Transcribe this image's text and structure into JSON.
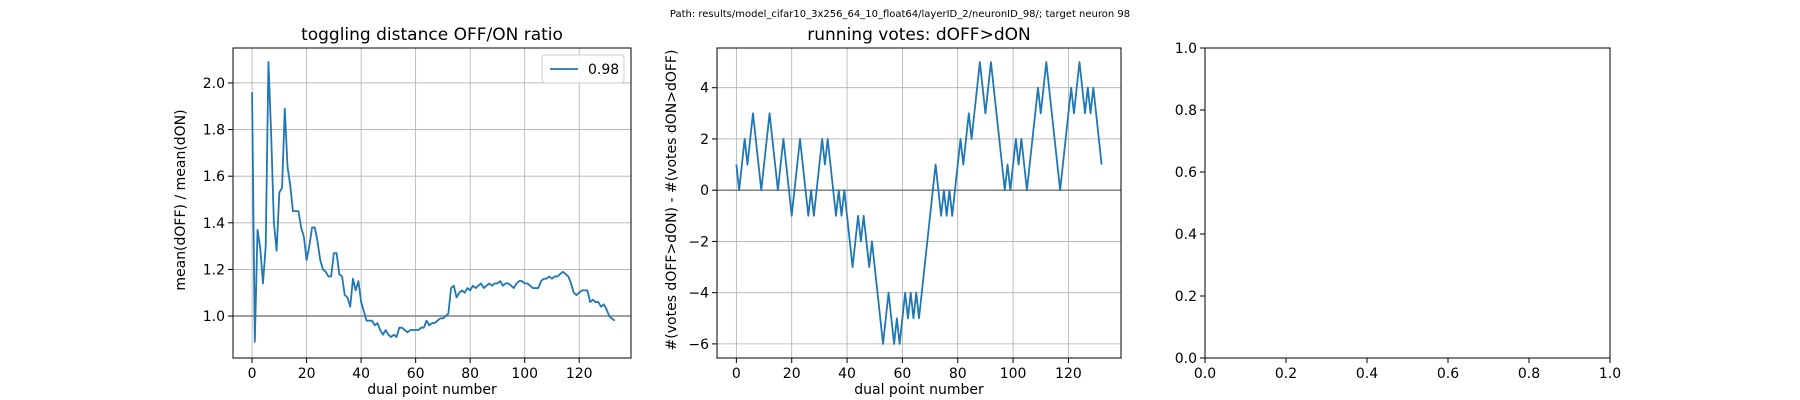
{
  "figure": {
    "suptitle": "Path: results/model_cifar10_3x256_64_10_float64/layerID_2/neuronID_98/; target neuron 98"
  },
  "colors": {
    "line": "#1f77b4",
    "reference": "#808080",
    "grid": "#b0b0b0",
    "axes": "#000000"
  },
  "chart_data": [
    {
      "type": "line",
      "title": "toggling distance OFF/ON ratio",
      "xlabel": "dual point number",
      "ylabel": "mean(dOFF) / mean(dON)",
      "xlim": [
        -7,
        139
      ],
      "ylim": [
        0.82,
        2.15
      ],
      "xticks": [
        0,
        20,
        40,
        60,
        80,
        100,
        120
      ],
      "yticks": [
        1.0,
        1.2,
        1.4,
        1.6,
        1.8,
        2.0
      ],
      "ytick_labels": [
        "1.0",
        "1.2",
        "1.4",
        "1.6",
        "1.8",
        "2.0"
      ],
      "grid": true,
      "hline": 1.0,
      "legend": {
        "position": "top-right",
        "entries": [
          "0.98"
        ]
      },
      "series": [
        {
          "name": "0.98",
          "values": [
            1.96,
            0.89,
            1.37,
            1.29,
            1.14,
            1.3,
            2.09,
            1.78,
            1.4,
            1.28,
            1.53,
            1.55,
            1.89,
            1.64,
            1.56,
            1.45,
            1.45,
            1.45,
            1.38,
            1.34,
            1.24,
            1.3,
            1.38,
            1.38,
            1.32,
            1.24,
            1.2,
            1.19,
            1.17,
            1.17,
            1.27,
            1.27,
            1.18,
            1.17,
            1.09,
            1.08,
            1.04,
            1.16,
            1.11,
            1.15,
            1.06,
            1.02,
            0.98,
            0.98,
            0.98,
            0.96,
            0.97,
            0.94,
            0.92,
            0.94,
            0.92,
            0.91,
            0.92,
            0.91,
            0.95,
            0.95,
            0.94,
            0.93,
            0.94,
            0.94,
            0.94,
            0.94,
            0.95,
            0.95,
            0.98,
            0.96,
            0.97,
            0.97,
            0.98,
            0.99,
            0.99,
            1.0,
            1.01,
            1.12,
            1.13,
            1.08,
            1.1,
            1.11,
            1.1,
            1.12,
            1.11,
            1.13,
            1.12,
            1.13,
            1.14,
            1.12,
            1.13,
            1.14,
            1.13,
            1.14,
            1.14,
            1.15,
            1.13,
            1.14,
            1.14,
            1.13,
            1.12,
            1.14,
            1.15,
            1.15,
            1.14,
            1.14,
            1.13,
            1.12,
            1.12,
            1.12,
            1.15,
            1.16,
            1.16,
            1.17,
            1.16,
            1.17,
            1.17,
            1.18,
            1.19,
            1.18,
            1.17,
            1.14,
            1.1,
            1.09,
            1.1,
            1.11,
            1.11,
            1.11,
            1.06,
            1.07,
            1.06,
            1.06,
            1.04,
            1.05,
            1.03,
            1.0,
            0.99,
            0.98
          ]
        }
      ]
    },
    {
      "type": "line",
      "title": "running votes: dOFF>dON",
      "xlabel": "dual point number",
      "ylabel": "#(votes dOFF>dON) - #(votes dON>dOFF)",
      "xlim": [
        -7,
        139
      ],
      "ylim": [
        -6.55,
        5.55
      ],
      "xticks": [
        0,
        20,
        40,
        60,
        80,
        100,
        120
      ],
      "yticks": [
        -6,
        -4,
        -2,
        0,
        2,
        4
      ],
      "ytick_labels": [
        "−6",
        "−4",
        "−2",
        "0",
        "2",
        "4"
      ],
      "grid": true,
      "hline": 0,
      "series": [
        {
          "values": [
            1,
            0,
            1,
            2,
            1,
            2,
            3,
            2,
            1,
            0,
            1,
            2,
            3,
            2,
            1,
            0,
            1,
            2,
            1,
            0,
            -1,
            0,
            1,
            2,
            1,
            0,
            -1,
            0,
            -1,
            0,
            1,
            2,
            1,
            2,
            1,
            0,
            -1,
            0,
            -1,
            0,
            -1,
            -2,
            -3,
            -2,
            -1,
            -2,
            -1,
            -2,
            -3,
            -2,
            -3,
            -4,
            -5,
            -6,
            -5,
            -4,
            -5,
            -6,
            -5,
            -6,
            -5,
            -4,
            -5,
            -4,
            -5,
            -4,
            -5,
            -4,
            -3,
            -2,
            -1,
            0,
            1,
            0,
            -1,
            0,
            -1,
            0,
            -1,
            0,
            1,
            2,
            1,
            2,
            3,
            2,
            3,
            4,
            5,
            4,
            3,
            4,
            5,
            4,
            3,
            2,
            1,
            0,
            1,
            0,
            1,
            2,
            1,
            2,
            1,
            0,
            1,
            2,
            3,
            4,
            3,
            4,
            5,
            4,
            3,
            2,
            1,
            0,
            1,
            2,
            3,
            4,
            3,
            4,
            5,
            4,
            3,
            4,
            3,
            4,
            3,
            2,
            1
          ]
        }
      ]
    },
    {
      "type": "line",
      "title": "",
      "xlabel": "",
      "ylabel": "",
      "xlim": [
        0,
        1
      ],
      "ylim": [
        0,
        1
      ],
      "xticks": [
        0,
        0.2,
        0.4,
        0.6,
        0.8,
        1
      ],
      "xtick_labels": [
        "0.0",
        "0.2",
        "0.4",
        "0.6",
        "0.8",
        "1.0"
      ],
      "yticks": [
        0,
        0.2,
        0.4,
        0.6,
        0.8,
        1
      ],
      "ytick_labels": [
        "0.0",
        "0.2",
        "0.4",
        "0.6",
        "0.8",
        "1.0"
      ],
      "grid": false,
      "series": []
    }
  ]
}
